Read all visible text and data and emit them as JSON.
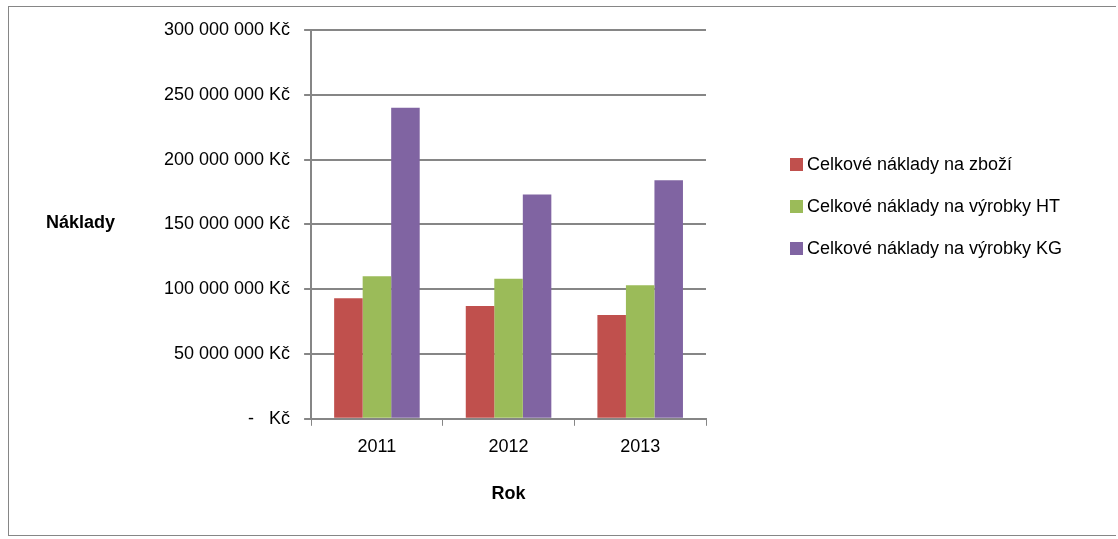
{
  "chart_data": {
    "type": "bar",
    "xlabel": "Rok",
    "ylabel": "Náklady",
    "categories": [
      "2011",
      "2012",
      "2013"
    ],
    "series": [
      {
        "name": "Celkové náklady na zboží",
        "color": "#c0504d",
        "values": [
          93000000,
          87000000,
          80000000
        ]
      },
      {
        "name": "Celkové náklady na výrobky HT",
        "color": "#9bbb59",
        "values": [
          110000000,
          108000000,
          103000000
        ]
      },
      {
        "name": "Celkové náklady na výrobky KG",
        "color": "#8064a2",
        "values": [
          240000000,
          173000000,
          184000000
        ]
      }
    ],
    "ylim": [
      0,
      300000000
    ],
    "yticks": [
      {
        "value": 0,
        "label": "-   Kč"
      },
      {
        "value": 50000000,
        "label": "50 000 000 Kč"
      },
      {
        "value": 100000000,
        "label": "100 000 000 Kč"
      },
      {
        "value": 150000000,
        "label": "150 000 000 Kč"
      },
      {
        "value": 200000000,
        "label": "200 000 000 Kč"
      },
      {
        "value": 250000000,
        "label": "250 000 000 Kč"
      },
      {
        "value": 300000000,
        "label": "300 000 000 Kč"
      }
    ],
    "grid": "y",
    "legend": "right"
  }
}
